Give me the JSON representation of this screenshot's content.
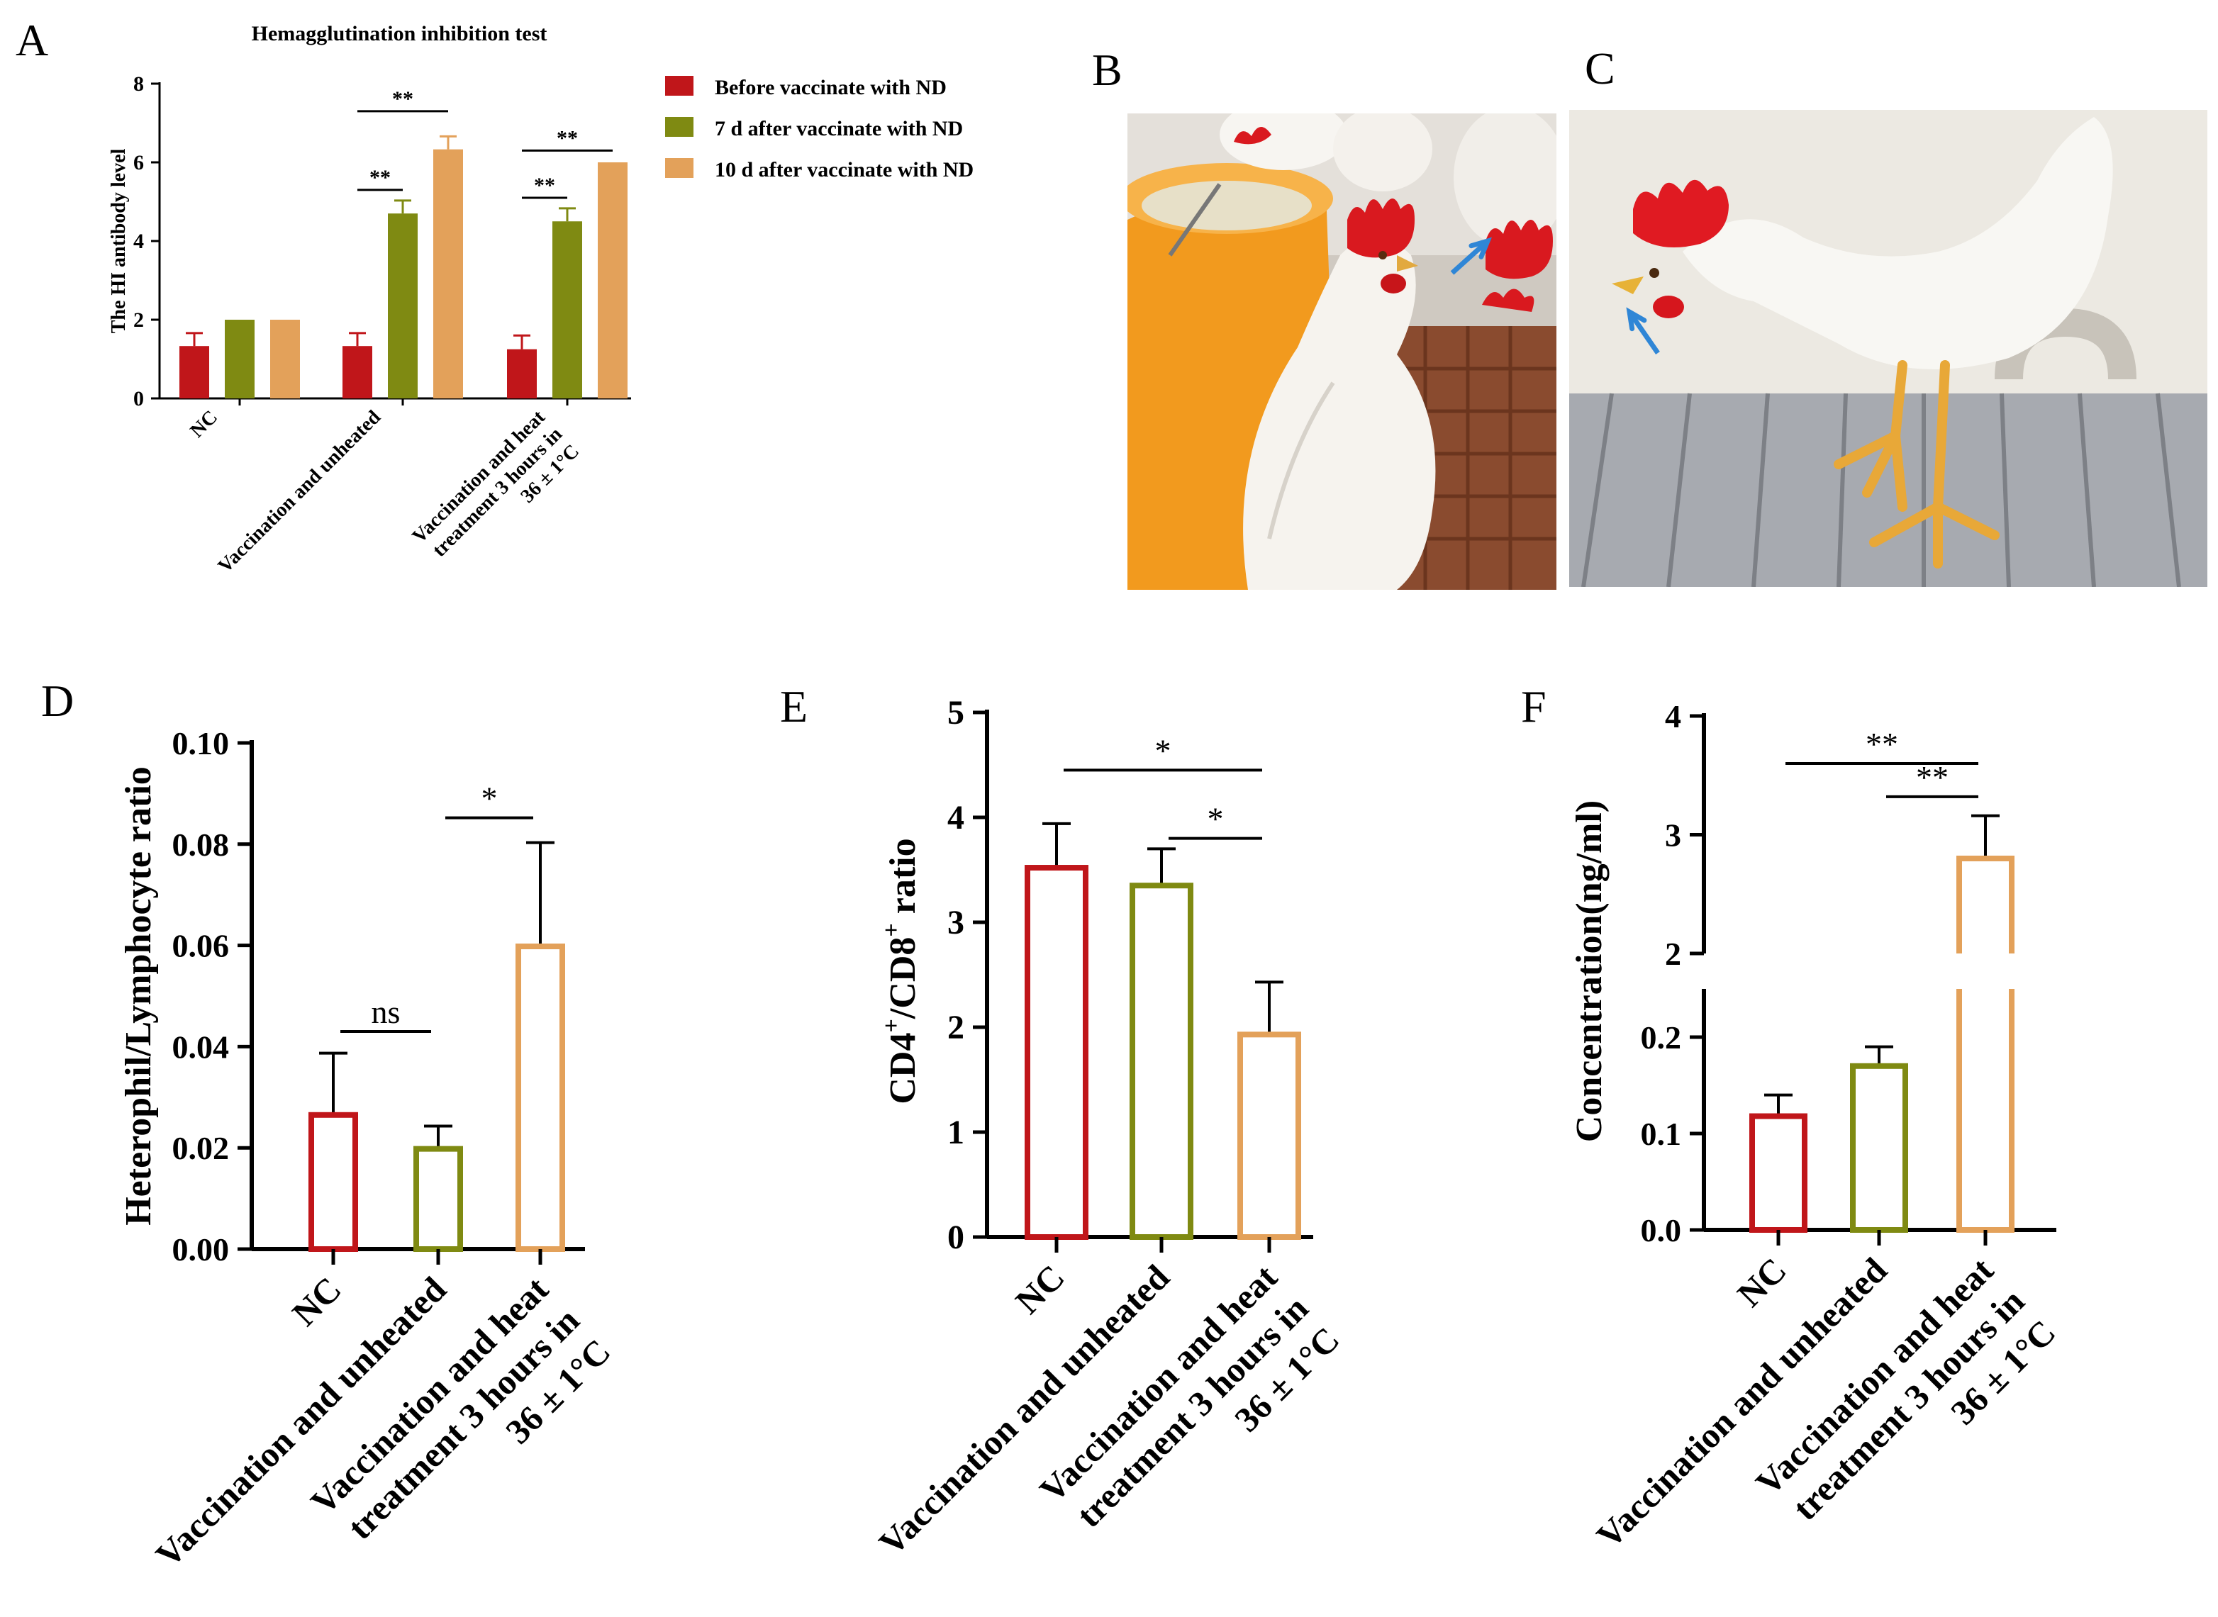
{
  "panel_labels": {
    "A": "A",
    "B": "B",
    "C": "C",
    "D": "D",
    "E": "E",
    "F": "F"
  },
  "colors": {
    "red": "#c0161a",
    "olive": "#7f8a12",
    "orange": "#e3a15a",
    "arrow": "#2f86d6"
  },
  "photos": {
    "B": {
      "subject": "white chicken beside an orange feeder, arrow pointing to the beak"
    },
    "C": {
      "subject": "white chicken standing on slatted floor, arrow pointing to the open beak"
    }
  },
  "chart_data": [
    {
      "id": "A",
      "type": "bar",
      "title": "Hemagglutination inhibition test",
      "ylabel": "The HI antibody level",
      "xlabel": "",
      "ylim": [
        0,
        8
      ],
      "yticks": [
        "0",
        "2",
        "4",
        "6",
        "8"
      ],
      "categories": [
        [
          "NC"
        ],
        [
          "Vaccination and unheated"
        ],
        [
          "Vaccination and heat",
          "treatment 3 hours in",
          "36 ± 1°C"
        ]
      ],
      "series": [
        {
          "name": "Before vaccinate with ND",
          "color": "#c0161a",
          "values": [
            1.33,
            1.33,
            1.25
          ],
          "errors": [
            0.33,
            0.33,
            0.35
          ]
        },
        {
          "name": "7 d after vaccinate with ND",
          "color": "#7f8a12",
          "values": [
            2.0,
            4.7,
            4.5
          ],
          "errors": [
            0,
            0.33,
            0.33
          ]
        },
        {
          "name": "10 d after vaccinate with ND",
          "color": "#e3a15a",
          "values": [
            2.0,
            6.33,
            6.0
          ],
          "errors": [
            0,
            0.33,
            0
          ]
        }
      ],
      "significance": [
        {
          "group": 1,
          "from": 0,
          "to": 1,
          "label": "**",
          "y": 5.3
        },
        {
          "group": 1,
          "from": 0,
          "to": 2,
          "label": "**",
          "y": 7.3
        },
        {
          "group": 2,
          "from": 0,
          "to": 1,
          "label": "**",
          "y": 5.1
        },
        {
          "group": 2,
          "from": 0,
          "to": 2,
          "label": "**",
          "y": 6.3
        }
      ]
    },
    {
      "id": "D",
      "type": "bar",
      "title": "",
      "ylabel": "Heterophil/Lymphocyte ratio",
      "xlabel": "",
      "ylim": [
        0,
        0.1
      ],
      "yticks": [
        "0.00",
        "0.02",
        "0.04",
        "0.06",
        "0.08",
        "0.10"
      ],
      "categories": [
        [
          "NC"
        ],
        [
          "Vaccination and unheated"
        ],
        [
          "Vaccination and heat",
          "treatment 3 hours in",
          "36 ± 1°C"
        ]
      ],
      "colors": [
        "#c0161a",
        "#7f8a12",
        "#e3a15a"
      ],
      "values": [
        0.0265,
        0.0198,
        0.0598
      ],
      "errors": [
        0.0122,
        0.0045,
        0.0205
      ],
      "significance": [
        {
          "from": 0,
          "to": 1,
          "label": "ns",
          "y": 0.043
        },
        {
          "from": 1,
          "to": 2,
          "label": "*",
          "y": 0.0852
        }
      ]
    },
    {
      "id": "E",
      "type": "bar",
      "title": "",
      "ylabel_parts": [
        "CD4",
        "+",
        "/CD8",
        "+",
        " ratio"
      ],
      "xlabel": "",
      "ylim": [
        0,
        5
      ],
      "yticks": [
        "0",
        "1",
        "2",
        "3",
        "4",
        "5"
      ],
      "categories": [
        [
          "NC"
        ],
        [
          "Vaccination and unheated"
        ],
        [
          "Vaccination and heat",
          "treatment 3 hours in",
          "36 ± 1°C"
        ]
      ],
      "colors": [
        "#c0161a",
        "#7f8a12",
        "#e3a15a"
      ],
      "values": [
        3.52,
        3.35,
        1.93
      ],
      "errors": [
        0.42,
        0.35,
        0.5
      ],
      "significance": [
        {
          "from": 0,
          "to": 2,
          "label": "*",
          "y": 4.45
        },
        {
          "from": 1,
          "to": 2,
          "label": "*",
          "y": 3.8
        }
      ]
    },
    {
      "id": "F",
      "type": "bar",
      "title": "",
      "ylabel": "Concentration(ng/ml)",
      "xlabel": "",
      "ylim_lower": [
        0,
        0.25
      ],
      "ylim_upper": [
        2,
        4
      ],
      "yticks_lower": [
        "0.0",
        "0.1",
        "0.2"
      ],
      "yticks_upper": [
        "2",
        "3",
        "4"
      ],
      "categories": [
        [
          "NC"
        ],
        [
          "Vaccination and unheated"
        ],
        [
          "Vaccination and heat",
          "treatment 3 hours in",
          "36 ± 1°C"
        ]
      ],
      "colors": [
        "#c0161a",
        "#7f8a12",
        "#e3a15a"
      ],
      "values": [
        0.118,
        0.17,
        2.8
      ],
      "errors": [
        0.022,
        0.02,
        0.36
      ],
      "significance": [
        {
          "from": 0,
          "to": 2,
          "label": "**",
          "y": 3.6
        },
        {
          "from": 1,
          "to": 2,
          "label": "**",
          "y": 3.32
        }
      ]
    }
  ]
}
